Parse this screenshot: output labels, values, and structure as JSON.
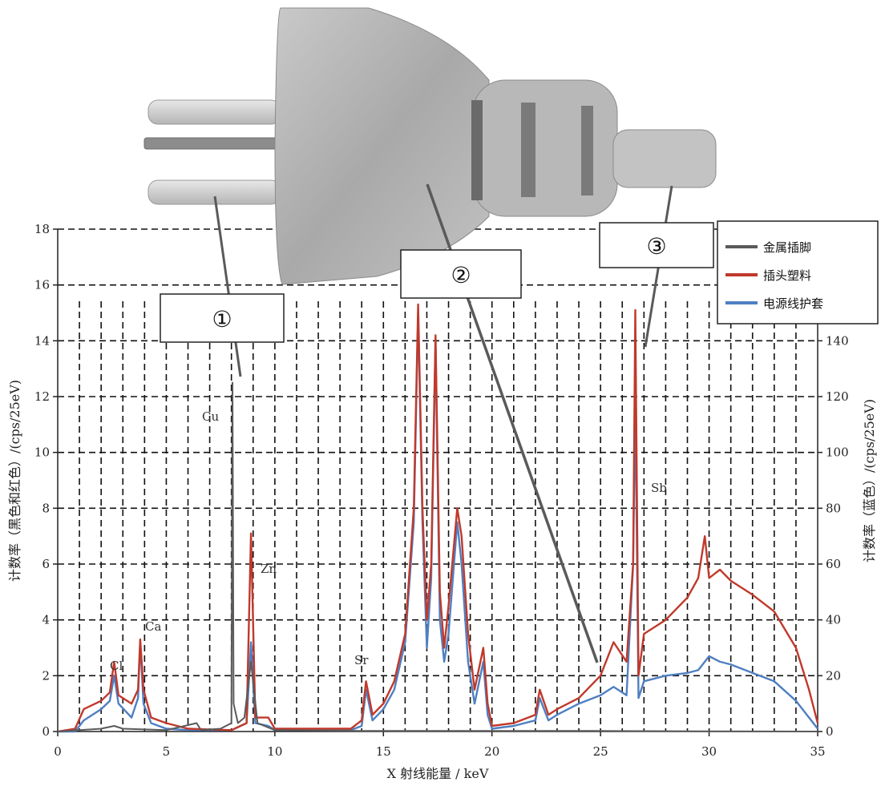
{
  "chart_data": {
    "type": "line",
    "xlabel": "X 射线能量 / keV",
    "ylabel_left": "计数率（黑色和红色）/(cps/25eV)",
    "ylabel_right": "计数率（蓝色）/(cps/25eV)",
    "xlim": [
      0,
      35
    ],
    "ylim_left": [
      0,
      18
    ],
    "ylim_right": [
      0,
      180
    ],
    "x_ticks": [
      "0",
      "5",
      "10",
      "15",
      "20",
      "25",
      "30",
      "35"
    ],
    "y_left_ticks": [
      "0",
      "2",
      "4",
      "6",
      "8",
      "10",
      "12",
      "14",
      "16",
      "18"
    ],
    "y_right_ticks": [
      "0",
      "20",
      "40",
      "60",
      "80",
      "100",
      "120",
      "140"
    ],
    "grid": true,
    "legend_position": "top-right",
    "series": [
      {
        "name": "金属插脚",
        "color": "#5a5a5a",
        "axis": "left",
        "points": [
          [
            0,
            0
          ],
          [
            1,
            0.05
          ],
          [
            2,
            0.1
          ],
          [
            2.6,
            0.2
          ],
          [
            3,
            0.1
          ],
          [
            5,
            0.05
          ],
          [
            6.4,
            0.3
          ],
          [
            6.6,
            0.05
          ],
          [
            7.5,
            0.1
          ],
          [
            8.0,
            0.3
          ],
          [
            8.05,
            12.5
          ],
          [
            8.1,
            1.0
          ],
          [
            8.3,
            0.3
          ],
          [
            8.6,
            0.5
          ],
          [
            8.9,
            2.5
          ],
          [
            9.2,
            0.3
          ],
          [
            10,
            0.05
          ],
          [
            14,
            0.02
          ],
          [
            20,
            0.02
          ],
          [
            25,
            0.02
          ],
          [
            30,
            0.01
          ],
          [
            35,
            0
          ]
        ]
      },
      {
        "name": "插头塑料",
        "color": "#c0392b",
        "axis": "left",
        "points": [
          [
            0,
            0
          ],
          [
            0.8,
            0.1
          ],
          [
            1.2,
            0.8
          ],
          [
            2,
            1.1
          ],
          [
            2.4,
            1.4
          ],
          [
            2.6,
            2.5
          ],
          [
            2.8,
            1.3
          ],
          [
            3.4,
            1.0
          ],
          [
            3.7,
            1.5
          ],
          [
            3.8,
            3.3
          ],
          [
            3.95,
            1.5
          ],
          [
            4.3,
            0.5
          ],
          [
            5,
            0.3
          ],
          [
            6,
            0.1
          ],
          [
            8,
            0.05
          ],
          [
            8.7,
            0.3
          ],
          [
            8.9,
            7.1
          ],
          [
            9.1,
            0.5
          ],
          [
            9.7,
            0.5
          ],
          [
            10,
            0.1
          ],
          [
            13.5,
            0.1
          ],
          [
            14,
            0.4
          ],
          [
            14.2,
            1.8
          ],
          [
            14.5,
            0.6
          ],
          [
            15,
            1.0
          ],
          [
            15.5,
            1.8
          ],
          [
            16,
            3.5
          ],
          [
            16.4,
            8.0
          ],
          [
            16.6,
            15.3
          ],
          [
            16.8,
            8.0
          ],
          [
            17.0,
            4.0
          ],
          [
            17.2,
            6.0
          ],
          [
            17.4,
            14.2
          ],
          [
            17.6,
            5.0
          ],
          [
            17.8,
            3.0
          ],
          [
            18.0,
            4.5
          ],
          [
            18.4,
            8.0
          ],
          [
            18.6,
            7.0
          ],
          [
            18.9,
            3.5
          ],
          [
            19.2,
            1.5
          ],
          [
            19.6,
            3.0
          ],
          [
            19.8,
            1.0
          ],
          [
            20,
            0.2
          ],
          [
            21,
            0.3
          ],
          [
            22,
            0.6
          ],
          [
            22.2,
            1.5
          ],
          [
            22.6,
            0.6
          ],
          [
            23,
            0.8
          ],
          [
            24,
            1.2
          ],
          [
            25,
            2.0
          ],
          [
            25.6,
            3.2
          ],
          [
            26.2,
            2.5
          ],
          [
            26.5,
            6.0
          ],
          [
            26.6,
            15.1
          ],
          [
            26.75,
            2.0
          ],
          [
            27,
            3.5
          ],
          [
            28,
            4.0
          ],
          [
            29,
            4.8
          ],
          [
            29.5,
            5.5
          ],
          [
            29.8,
            7.0
          ],
          [
            30,
            5.5
          ],
          [
            30.5,
            5.8
          ],
          [
            31,
            5.4
          ],
          [
            32,
            4.9
          ],
          [
            33,
            4.3
          ],
          [
            34,
            3.0
          ],
          [
            34.6,
            1.5
          ],
          [
            35,
            0.3
          ]
        ]
      },
      {
        "name": "电源线护套",
        "color": "#4f7fc2",
        "axis": "right",
        "points": [
          [
            0,
            0
          ],
          [
            0.8,
            0
          ],
          [
            1.2,
            4
          ],
          [
            2,
            8
          ],
          [
            2.4,
            11
          ],
          [
            2.6,
            20
          ],
          [
            2.8,
            10
          ],
          [
            3.4,
            5
          ],
          [
            3.7,
            12
          ],
          [
            3.8,
            32
          ],
          [
            3.95,
            10
          ],
          [
            4.3,
            3
          ],
          [
            5,
            1
          ],
          [
            6,
            0.5
          ],
          [
            8,
            0.5
          ],
          [
            8.7,
            3
          ],
          [
            8.9,
            32
          ],
          [
            9.1,
            3
          ],
          [
            9.7,
            2
          ],
          [
            10,
            0.5
          ],
          [
            13.5,
            0.5
          ],
          [
            14,
            2
          ],
          [
            14.2,
            15
          ],
          [
            14.5,
            4
          ],
          [
            15,
            8
          ],
          [
            15.5,
            15
          ],
          [
            16,
            32
          ],
          [
            16.4,
            75
          ],
          [
            16.6,
            150
          ],
          [
            16.8,
            75
          ],
          [
            17.0,
            30
          ],
          [
            17.2,
            55
          ],
          [
            17.4,
            140
          ],
          [
            17.6,
            40
          ],
          [
            17.8,
            25
          ],
          [
            18.0,
            35
          ],
          [
            18.4,
            75
          ],
          [
            18.6,
            60
          ],
          [
            18.9,
            25
          ],
          [
            19.2,
            10
          ],
          [
            19.6,
            25
          ],
          [
            19.8,
            6
          ],
          [
            20,
            1
          ],
          [
            21,
            2
          ],
          [
            22,
            4
          ],
          [
            22.2,
            12
          ],
          [
            22.6,
            4
          ],
          [
            23,
            6
          ],
          [
            24,
            10
          ],
          [
            25,
            13
          ],
          [
            25.6,
            16
          ],
          [
            26.2,
            13
          ],
          [
            26.5,
            60
          ],
          [
            26.6,
            120
          ],
          [
            26.75,
            12
          ],
          [
            27,
            18
          ],
          [
            28,
            20
          ],
          [
            29,
            21
          ],
          [
            29.5,
            22
          ],
          [
            29.8,
            25
          ],
          [
            30,
            27
          ],
          [
            30.5,
            25
          ],
          [
            31,
            24
          ],
          [
            32,
            21
          ],
          [
            33,
            18
          ],
          [
            34,
            11
          ],
          [
            34.6,
            5
          ],
          [
            35,
            1
          ]
        ]
      }
    ],
    "element_labels": [
      "Cl",
      "Ca",
      "Cu",
      "Zn",
      "Sr",
      "Sb"
    ],
    "callouts": [
      "①",
      "②",
      "③"
    ]
  }
}
